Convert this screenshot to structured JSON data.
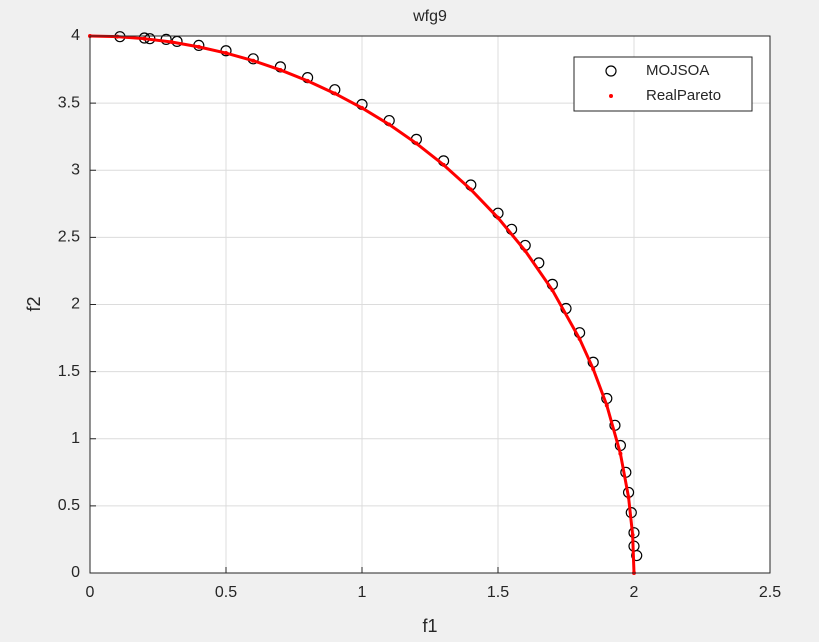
{
  "chart_data": {
    "type": "scatter",
    "title": "wfg9",
    "x_label": "f1",
    "y_label": "f2",
    "xlim": [
      0,
      2.5
    ],
    "ylim": [
      0,
      4
    ],
    "xticks": [
      0,
      0.5,
      1,
      1.5,
      2,
      2.5
    ],
    "yticks": [
      0,
      0.5,
      1,
      1.5,
      2,
      2.5,
      3,
      3.5,
      4
    ],
    "grid": true,
    "legend": "northeast",
    "series": [
      {
        "name": "MOJSOA",
        "color": "#000000",
        "marker": "circle",
        "x": [
          0.11,
          0.2,
          0.22,
          0.28,
          0.32,
          0.4,
          0.5,
          0.6,
          0.7,
          0.8,
          0.9,
          1.0,
          1.1,
          1.2,
          1.3,
          1.4,
          1.5,
          1.55,
          1.6,
          1.65,
          1.7,
          1.75,
          1.8,
          1.85,
          1.9,
          1.93,
          1.95,
          1.97,
          1.98,
          1.99,
          2.0,
          2.0,
          2.01
        ],
        "values": [
          3.995,
          3.985,
          3.98,
          3.975,
          3.96,
          3.93,
          3.89,
          3.83,
          3.77,
          3.69,
          3.6,
          3.49,
          3.37,
          3.23,
          3.07,
          2.89,
          2.68,
          2.56,
          2.44,
          2.31,
          2.15,
          1.97,
          1.79,
          1.57,
          1.3,
          1.1,
          0.95,
          0.75,
          0.6,
          0.45,
          0.3,
          0.2,
          0.13
        ]
      },
      {
        "name": "RealPareto",
        "color": "#ff0000",
        "marker": "dot",
        "x": [
          0,
          0.1,
          0.2,
          0.3,
          0.4,
          0.5,
          0.6,
          0.7,
          0.8,
          0.9,
          1.0,
          1.1,
          1.2,
          1.3,
          1.4,
          1.5,
          1.6,
          1.7,
          1.8,
          1.85,
          1.9,
          1.95,
          1.98,
          1.995,
          2.0
        ],
        "values": [
          4,
          3.995,
          3.98,
          3.955,
          3.919,
          3.873,
          3.816,
          3.747,
          3.666,
          3.572,
          3.464,
          3.341,
          3.2,
          3.04,
          2.857,
          2.646,
          2.4,
          2.107,
          1.744,
          1.52,
          1.249,
          0.889,
          0.564,
          0.283,
          0
        ]
      }
    ]
  }
}
